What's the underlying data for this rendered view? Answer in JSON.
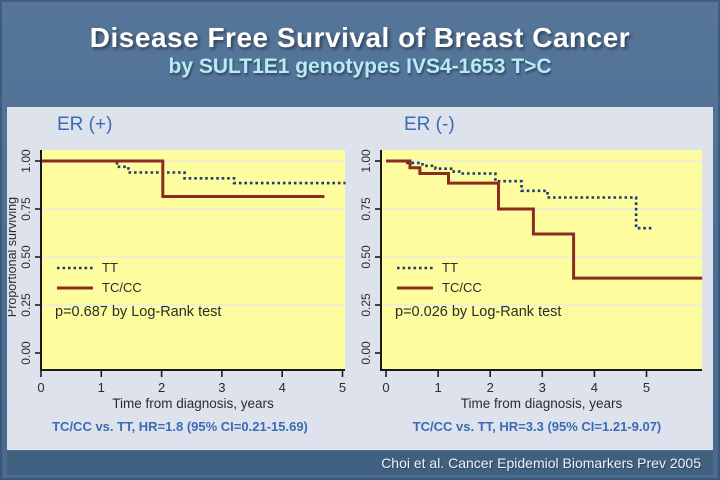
{
  "slide": {
    "title": "Disease Free Survival of Breast Cancer",
    "subtitle": "by SULT1E1 genotypes IVS4-1653 T>C",
    "citation": "Choi et al. Cancer Epidemiol Biomarkers Prev 2005"
  },
  "colors": {
    "accent_blue": "#3a6cb4",
    "tt_line": "#1e3c6e",
    "tccc_line": "#8c2c21",
    "chart_bg": "#fdfc9f",
    "gridline": "#e9edd9",
    "panel_bg": "#dee2ec",
    "citation_bg": "#40607f",
    "title_color": "#ffffff",
    "subtitle_color": "#b5ecf7",
    "axis_color": "#1a1a1a",
    "text_dark": "#2b2b2b"
  },
  "chart_data": [
    {
      "type": "line",
      "subtype": "kaplan-meier-step",
      "title": "ER (+)",
      "xlabel": "Time from diagnosis, years",
      "ylabel": "Proportional surviving",
      "xticks": [
        0,
        1,
        2,
        3,
        4,
        5
      ],
      "yticks": [
        0.0,
        0.25,
        0.5,
        0.75,
        1.0
      ],
      "ytick_labels": [
        "0.00",
        "0.25",
        "0.50",
        "0.75",
        "1.00"
      ],
      "ylim": [
        0,
        1.05
      ],
      "xlim_plot": 5.06,
      "grid": true,
      "legend_position": "inside-lower-left",
      "p_label": "p=0.687 by Log-Rank test",
      "hr_label": "TC/CC vs. TT, HR=1.8 (95% CI=0.21-15.69)",
      "series": [
        {
          "name": "TT",
          "style": "dotted",
          "steps": [
            [
              0,
              1.0
            ],
            [
              1.26,
              0.97
            ],
            [
              1.45,
              0.94
            ],
            [
              2.38,
              0.91
            ],
            [
              3.2,
              0.885
            ]
          ],
          "end_x": 5.05
        },
        {
          "name": "TC/CC",
          "style": "solid",
          "steps": [
            [
              0,
              1.0
            ],
            [
              2.02,
              0.815
            ]
          ],
          "end_x": 4.7
        }
      ]
    },
    {
      "type": "line",
      "subtype": "kaplan-meier-step",
      "title": "ER (-)",
      "xlabel": "Time from diagnosis, years",
      "ylabel": "",
      "xticks": [
        0,
        1,
        2,
        3,
        4,
        5
      ],
      "yticks": [
        0.0,
        0.25,
        0.5,
        0.75,
        1.0
      ],
      "ytick_labels": [
        "0.00",
        "0.25",
        "0.50",
        "0.75",
        "1.00"
      ],
      "ylim": [
        0,
        1.05
      ],
      "xlim_plot": 6.07,
      "grid": true,
      "legend_position": "inside-lower-left",
      "p_label": "p=0.026 by Log-Rank test",
      "hr_label": "TC/CC vs. TT, HR=3.3 (95% CI=1.21-9.07)",
      "series": [
        {
          "name": "TT",
          "style": "dotted",
          "steps": [
            [
              0,
              1.0
            ],
            [
              0.35,
              0.99
            ],
            [
              0.7,
              0.975
            ],
            [
              0.95,
              0.96
            ],
            [
              1.25,
              0.945
            ],
            [
              1.45,
              0.935
            ],
            [
              2.1,
              0.895
            ],
            [
              2.6,
              0.845
            ],
            [
              3.1,
              0.81
            ],
            [
              4.8,
              0.65
            ]
          ],
          "end_x": 5.1
        },
        {
          "name": "TC/CC",
          "style": "solid",
          "steps": [
            [
              0,
              1.0
            ],
            [
              0.46,
              0.965
            ],
            [
              0.65,
              0.935
            ],
            [
              1.2,
              0.885
            ],
            [
              2.16,
              0.75
            ],
            [
              2.83,
              0.62
            ],
            [
              3.6,
              0.39
            ]
          ],
          "end_x": 6.07
        }
      ]
    }
  ]
}
